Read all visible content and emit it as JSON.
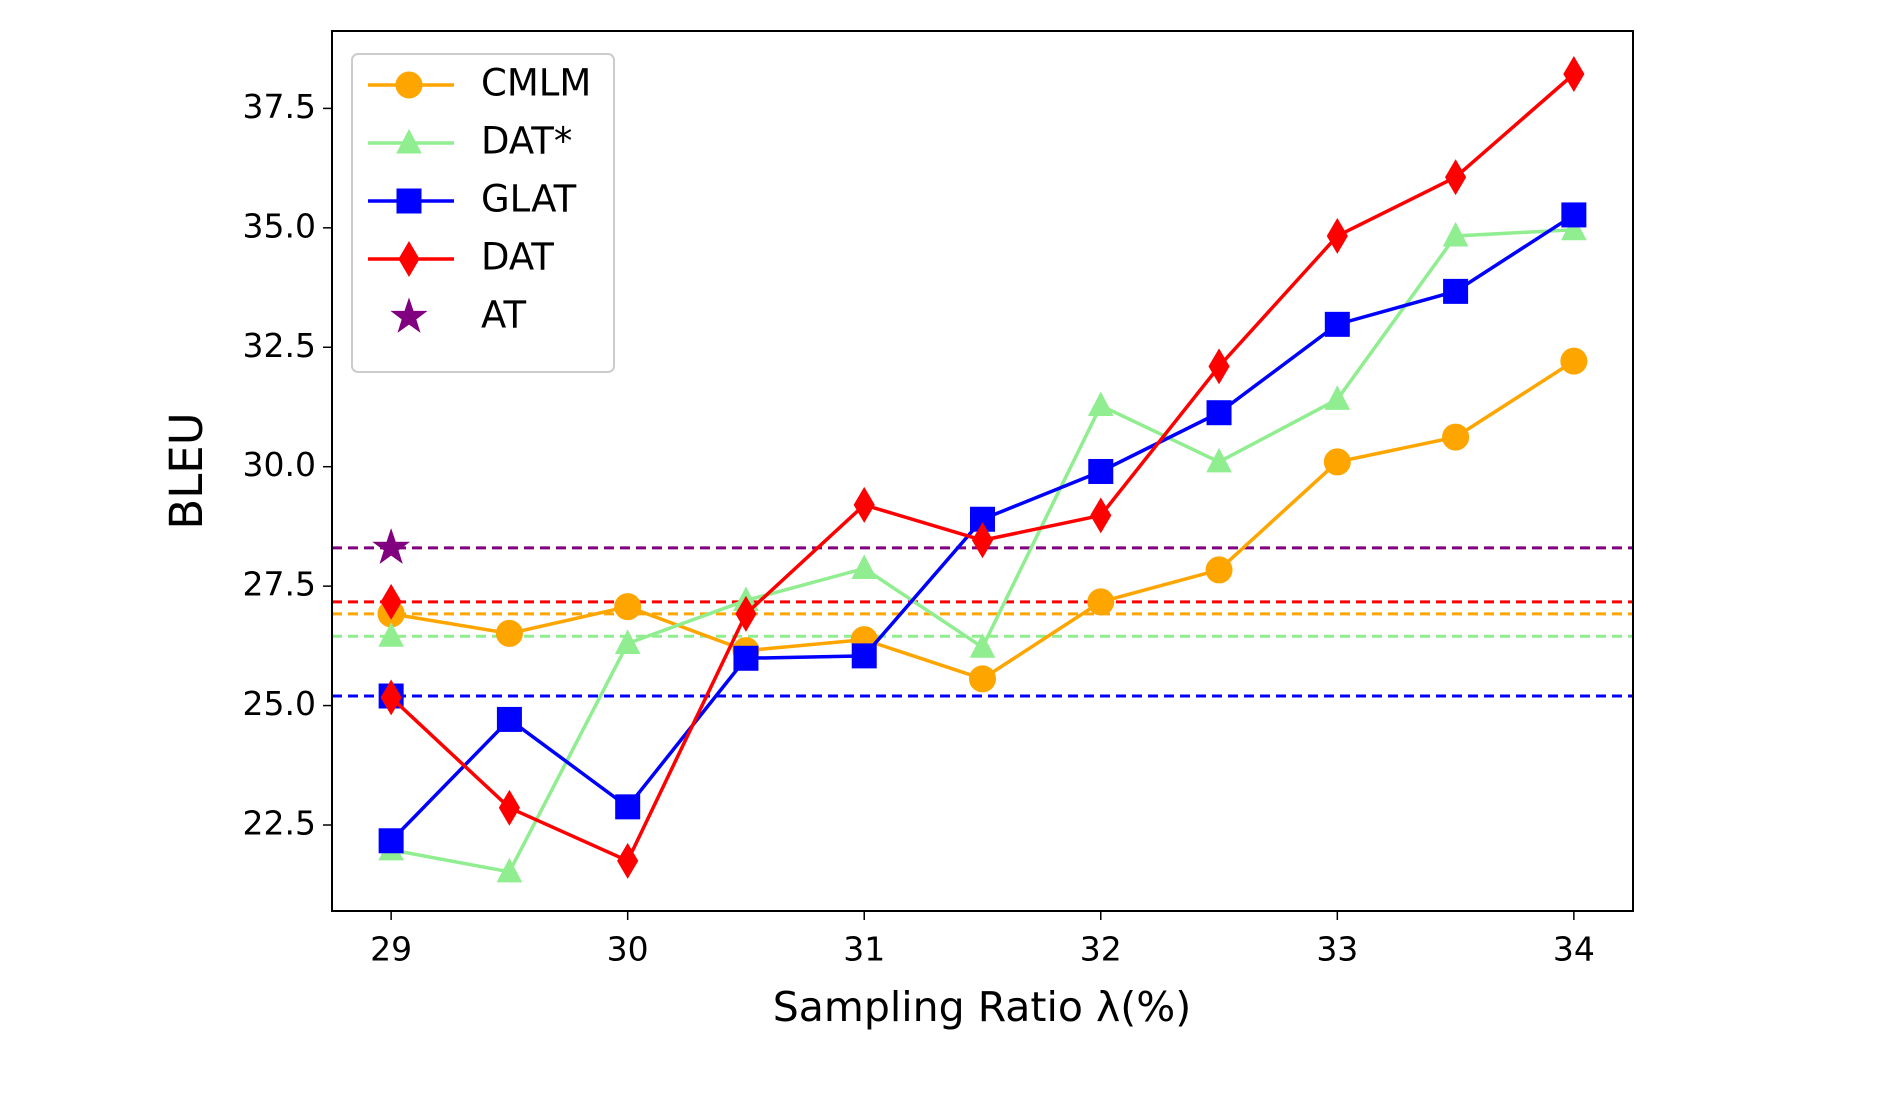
{
  "chart_data": {
    "type": "line",
    "x_label": "Sampling Ratio λ(%)",
    "y_label": "BLEU",
    "x": [
      29,
      29.5,
      30,
      30.5,
      31,
      31.5,
      32,
      32.5,
      33,
      33.5,
      34
    ],
    "series": [
      {
        "name": "CMLM",
        "color": "#ffa500",
        "marker": "circle",
        "baseline": 26.92,
        "values": [
          26.92,
          26.51,
          27.07,
          26.15,
          26.38,
          25.56,
          27.17,
          27.84,
          30.1,
          30.62,
          32.21
        ]
      },
      {
        "name": "DAT*",
        "color": "#90ee90",
        "marker": "triangle",
        "baseline": 26.45,
        "values": [
          21.98,
          21.52,
          26.3,
          27.2,
          27.87,
          26.22,
          31.28,
          30.1,
          31.41,
          34.83,
          34.96
        ]
      },
      {
        "name": "GLAT",
        "color": "#0000ff",
        "marker": "square",
        "baseline": 25.2,
        "values": [
          22.17,
          24.71,
          22.88,
          25.99,
          26.04,
          28.9,
          29.9,
          31.13,
          32.98,
          33.67,
          35.27
        ]
      },
      {
        "name": "DAT",
        "color": "#ff0000",
        "marker": "diamond",
        "baseline": 27.17,
        "values": [
          25.17,
          22.86,
          21.75,
          26.92,
          29.2,
          28.46,
          28.98,
          32.1,
          34.83,
          36.06,
          38.22
        ]
      },
      {
        "name": "AT",
        "color": "#800080",
        "marker": "star",
        "baseline": 28.3,
        "values": [
          28.3,
          null,
          null,
          null,
          null,
          null,
          null,
          null,
          null,
          null,
          null
        ]
      }
    ],
    "xlim": [
      28.75,
      34.25
    ],
    "ylim": [
      20.7,
      39.12
    ],
    "xticks": [
      29,
      30,
      31,
      32,
      33,
      34
    ],
    "yticks": [
      22.5,
      {
        "value": 25,
        "label": "25.0"
      },
      27.5,
      {
        "value": 30,
        "label": "30.0"
      },
      32.5,
      {
        "value": 35,
        "label": "35.0"
      },
      37.5
    ],
    "legend": "upper left"
  }
}
